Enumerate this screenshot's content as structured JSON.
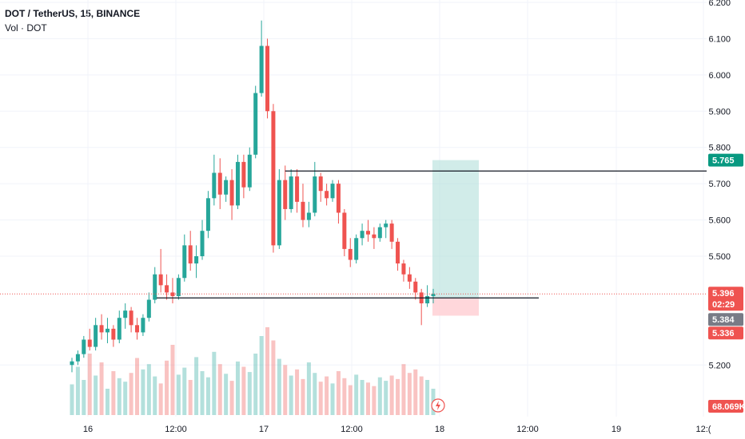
{
  "header": {
    "title": "DOT / TetherUS, 15, BINANCE",
    "volume_label": "Vol · DOT"
  },
  "colors": {
    "up": "#26a69a",
    "down": "#ef5350",
    "grid": "#f0f3fa",
    "axis_text": "#131722",
    "line": "#131722",
    "target_zone": "#b2dfdb",
    "stop_zone": "#ffcdd2",
    "price_badge": "#ef5350",
    "position_badge": "#787b86",
    "target_badge": "#089981"
  },
  "badges": {
    "target_price": "5.765",
    "last_price": "5.396",
    "countdown": "02:29",
    "entry_price": "5.384",
    "stop_price": "5.336",
    "volume_value": "68.069K"
  },
  "chart_data": {
    "type": "candlestick",
    "title": "DOT / TetherUS, 15, BINANCE",
    "y_ticks": [
      "6.200",
      "6.100",
      "6.000",
      "5.900",
      "5.800",
      "5.700",
      "5.600",
      "5.500",
      "5.200"
    ],
    "x_ticks": [
      "16",
      "12:00",
      "17",
      "12:00",
      "18",
      "12:00",
      "19",
      "12:("
    ],
    "ylim": [
      5.15,
      6.2
    ],
    "grid": true,
    "last_price": 5.396,
    "candles": [
      [
        5.2,
        5.22,
        5.18,
        5.21
      ],
      [
        5.21,
        5.24,
        5.2,
        5.23
      ],
      [
        5.23,
        5.28,
        5.22,
        5.27
      ],
      [
        5.27,
        5.3,
        5.24,
        5.25
      ],
      [
        5.25,
        5.33,
        5.24,
        5.31
      ],
      [
        5.31,
        5.34,
        5.27,
        5.29
      ],
      [
        5.29,
        5.33,
        5.26,
        5.3
      ],
      [
        5.3,
        5.31,
        5.25,
        5.27
      ],
      [
        5.27,
        5.35,
        5.26,
        5.33
      ],
      [
        5.33,
        5.37,
        5.3,
        5.35
      ],
      [
        5.35,
        5.36,
        5.29,
        5.31
      ],
      [
        5.31,
        5.33,
        5.27,
        5.29
      ],
      [
        5.29,
        5.34,
        5.28,
        5.33
      ],
      [
        5.33,
        5.4,
        5.32,
        5.38
      ],
      [
        5.38,
        5.47,
        5.37,
        5.45
      ],
      [
        5.45,
        5.52,
        5.4,
        5.42
      ],
      [
        5.42,
        5.45,
        5.38,
        5.4
      ],
      [
        5.4,
        5.44,
        5.37,
        5.39
      ],
      [
        5.39,
        5.45,
        5.38,
        5.44
      ],
      [
        5.44,
        5.56,
        5.43,
        5.53
      ],
      [
        5.53,
        5.57,
        5.46,
        5.48
      ],
      [
        5.48,
        5.53,
        5.44,
        5.5
      ],
      [
        5.5,
        5.6,
        5.49,
        5.57
      ],
      [
        5.57,
        5.68,
        5.55,
        5.66
      ],
      [
        5.66,
        5.78,
        5.64,
        5.73
      ],
      [
        5.73,
        5.77,
        5.63,
        5.67
      ],
      [
        5.67,
        5.72,
        5.65,
        5.71
      ],
      [
        5.71,
        5.74,
        5.6,
        5.64
      ],
      [
        5.64,
        5.78,
        5.63,
        5.76
      ],
      [
        5.76,
        5.78,
        5.66,
        5.69
      ],
      [
        5.69,
        5.8,
        5.68,
        5.78
      ],
      [
        5.78,
        5.97,
        5.77,
        5.95
      ],
      [
        5.95,
        6.15,
        5.94,
        6.08
      ],
      [
        6.08,
        6.1,
        5.88,
        5.9
      ],
      [
        5.9,
        5.92,
        5.51,
        5.53
      ],
      [
        5.53,
        5.74,
        5.52,
        5.71
      ],
      [
        5.71,
        5.75,
        5.6,
        5.63
      ],
      [
        5.63,
        5.74,
        5.62,
        5.72
      ],
      [
        5.72,
        5.74,
        5.62,
        5.65
      ],
      [
        5.65,
        5.7,
        5.58,
        5.6
      ],
      [
        5.6,
        5.65,
        5.58,
        5.62
      ],
      [
        5.62,
        5.76,
        5.61,
        5.72
      ],
      [
        5.72,
        5.73,
        5.65,
        5.68
      ],
      [
        5.68,
        5.7,
        5.64,
        5.66
      ],
      [
        5.66,
        5.71,
        5.65,
        5.7
      ],
      [
        5.7,
        5.71,
        5.59,
        5.62
      ],
      [
        5.62,
        5.63,
        5.5,
        5.52
      ],
      [
        5.52,
        5.55,
        5.47,
        5.49
      ],
      [
        5.49,
        5.56,
        5.48,
        5.55
      ],
      [
        5.55,
        5.59,
        5.53,
        5.57
      ],
      [
        5.57,
        5.6,
        5.54,
        5.56
      ],
      [
        5.56,
        5.58,
        5.52,
        5.55
      ],
      [
        5.55,
        5.59,
        5.54,
        5.58
      ],
      [
        5.58,
        5.6,
        5.55,
        5.59
      ],
      [
        5.59,
        5.6,
        5.52,
        5.54
      ],
      [
        5.54,
        5.55,
        5.46,
        5.48
      ],
      [
        5.48,
        5.49,
        5.43,
        5.45
      ],
      [
        5.45,
        5.47,
        5.41,
        5.43
      ],
      [
        5.43,
        5.44,
        5.38,
        5.4
      ],
      [
        5.4,
        5.41,
        5.31,
        5.37
      ],
      [
        5.37,
        5.42,
        5.36,
        5.39
      ],
      [
        5.39,
        5.41,
        5.37,
        5.396
      ]
    ],
    "volumes": [
      0.35,
      0.55,
      0.4,
      0.7,
      0.45,
      0.6,
      0.3,
      0.5,
      0.42,
      0.38,
      0.48,
      0.65,
      0.52,
      0.58,
      0.44,
      0.36,
      0.62,
      0.8,
      0.46,
      0.54,
      0.4,
      0.66,
      0.5,
      0.43,
      0.72,
      0.58,
      0.47,
      0.39,
      0.61,
      0.55,
      0.49,
      0.7,
      0.9,
      1.0,
      0.85,
      0.64,
      0.57,
      0.45,
      0.52,
      0.41,
      0.6,
      0.48,
      0.38,
      0.44,
      0.36,
      0.5,
      0.42,
      0.34,
      0.46,
      0.4,
      0.37,
      0.33,
      0.43,
      0.39,
      0.45,
      0.41,
      0.58,
      0.48,
      0.52,
      0.44,
      0.4,
      0.3
    ],
    "horizontal_lines": [
      {
        "price": 5.735,
        "from_candle": 36,
        "to_edge": true
      },
      {
        "price": 5.385,
        "from_candle": 14,
        "to_candle_offset": 90
      }
    ],
    "position": {
      "entry": 5.384,
      "target": 5.765,
      "stop": 5.336
    }
  }
}
